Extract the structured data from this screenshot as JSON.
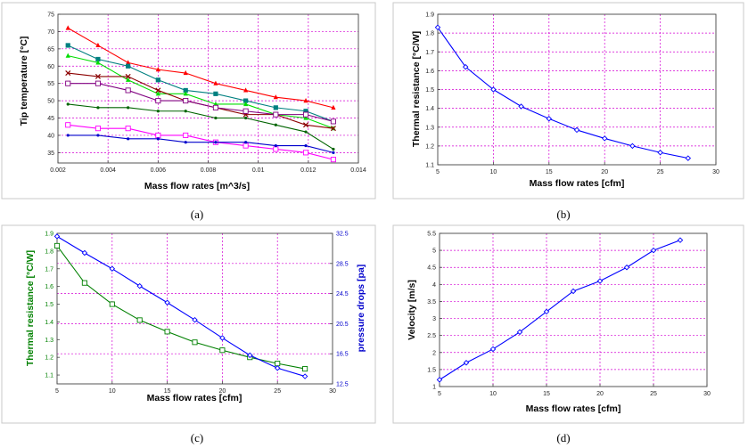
{
  "captions": {
    "a": "(a)",
    "b": "(b)",
    "c": "(c)",
    "d": "(d)"
  },
  "chart_data": [
    {
      "id": "a",
      "type": "line",
      "xlabel": "Mass flow rates [m^3/s]",
      "ylabel": "Tip temperature [°C]",
      "xlim": [
        0.002,
        0.014
      ],
      "ylim": [
        32,
        75
      ],
      "xticks": [
        0.002,
        0.004,
        0.006,
        0.008,
        0.01,
        0.012,
        0.014
      ],
      "xtick_labels": [
        "0.002",
        "0.004",
        "0.006",
        "0.008",
        "0.01",
        "0.012",
        "0.014"
      ],
      "yticks": [
        35,
        40,
        45,
        50,
        55,
        60,
        65,
        70,
        75
      ],
      "ytick_labels": [
        "35",
        "40",
        "45",
        "50",
        "55",
        "60",
        "65",
        "70",
        "75"
      ],
      "grid": true,
      "x": [
        0.0024,
        0.0036,
        0.0048,
        0.006,
        0.0071,
        0.0083,
        0.0095,
        0.0107,
        0.0119,
        0.013
      ],
      "series": [
        {
          "color": "#ff0000",
          "marker": "triangle",
          "values": [
            71,
            66,
            61,
            59,
            58,
            55,
            53,
            51,
            50,
            48
          ]
        },
        {
          "color": "#008080",
          "marker": "square",
          "values": [
            66,
            62,
            60,
            56,
            53,
            52,
            50,
            48,
            47,
            44
          ]
        },
        {
          "color": "#00dd00",
          "marker": "triangle",
          "values": [
            63,
            61,
            56,
            52,
            52,
            49,
            49,
            46,
            45,
            42
          ]
        },
        {
          "color": "#8b0000",
          "marker": "x",
          "values": [
            58,
            57,
            57,
            53,
            50,
            48,
            46,
            46,
            43,
            42
          ]
        },
        {
          "color": "#800080",
          "marker": "square-open",
          "values": [
            55,
            55,
            53,
            50,
            50,
            48,
            47,
            46,
            46,
            44
          ]
        },
        {
          "color": "#006400",
          "marker": "dot",
          "values": [
            49,
            48,
            48,
            47,
            47,
            45,
            45,
            43,
            41,
            36
          ]
        },
        {
          "color": "#ff00ff",
          "marker": "square-open",
          "values": [
            43,
            42,
            42,
            40,
            40,
            38,
            37,
            36,
            35,
            33
          ]
        },
        {
          "color": "#0000cc",
          "marker": "dot",
          "values": [
            40,
            40,
            39,
            39,
            38,
            38,
            38,
            37,
            37,
            35
          ]
        }
      ]
    },
    {
      "id": "b",
      "type": "line",
      "xlabel": "Mass flow rates [cfm]",
      "ylabel": "Thermal resistance [°C/W]",
      "xlim": [
        5,
        30
      ],
      "ylim": [
        1.1,
        1.9
      ],
      "xticks": [
        5,
        10,
        15,
        20,
        25,
        30
      ],
      "xtick_labels": [
        "5",
        "10",
        "15",
        "20",
        "25",
        "30"
      ],
      "yticks": [
        1.1,
        1.2,
        1.3,
        1.4,
        1.5,
        1.6,
        1.7,
        1.8,
        1.9
      ],
      "ytick_labels": [
        "1.1",
        "1.2",
        "1.3",
        "1.4",
        "1.5",
        "1.6",
        "1.7",
        "1.8",
        "1.9"
      ],
      "grid": true,
      "x": [
        5,
        7.5,
        10,
        12.5,
        15,
        17.5,
        20,
        22.5,
        25,
        27.5
      ],
      "series": [
        {
          "color": "#0000ff",
          "marker": "diamond",
          "values": [
            1.83,
            1.62,
            1.5,
            1.41,
            1.345,
            1.285,
            1.24,
            1.2,
            1.165,
            1.135
          ]
        }
      ]
    },
    {
      "id": "c",
      "type": "line",
      "xlabel": "Mass flow rates [cfm]",
      "ylabel": "Thermal resistance [°C/W]",
      "ylabel_right": "pressure drops [pa]",
      "xlim": [
        5,
        30
      ],
      "ylim": [
        1.05,
        1.9
      ],
      "ylim_right": [
        12.5,
        32.5
      ],
      "xticks": [
        5,
        10,
        15,
        20,
        25,
        30
      ],
      "xtick_labels": [
        "5",
        "10",
        "15",
        "20",
        "25",
        "30"
      ],
      "yticks": [
        1.1,
        1.2,
        1.3,
        1.4,
        1.5,
        1.6,
        1.7,
        1.8,
        1.9
      ],
      "ytick_labels": [
        "1.1",
        "1.2",
        "1.3",
        "1.4",
        "1.5",
        "1.6",
        "1.7",
        "1.8",
        "1.9"
      ],
      "yticks_right": [
        12.5,
        16.5,
        20.5,
        24.5,
        28.5,
        32.5
      ],
      "ytick_labels_right": [
        "12.5",
        "16.5",
        "20.5",
        "24.5",
        "28.5",
        "32.5"
      ],
      "grid": true,
      "x": [
        5,
        7.5,
        10,
        12.5,
        15,
        17.5,
        20,
        22.5,
        25,
        27.5
      ],
      "series": [
        {
          "color": "#008000",
          "marker": "square-open",
          "axis": "left",
          "values": [
            1.83,
            1.62,
            1.5,
            1.41,
            1.345,
            1.285,
            1.24,
            1.2,
            1.165,
            1.135
          ]
        },
        {
          "color": "#0000ff",
          "marker": "diamond",
          "axis": "right",
          "values": [
            32.1,
            29.9,
            27.8,
            25.5,
            23.3,
            21.0,
            18.6,
            16.3,
            14.6,
            13.5
          ]
        }
      ]
    },
    {
      "id": "d",
      "type": "line",
      "xlabel": "Mass flow rates [cfm]",
      "ylabel": "Velocity [m/s]",
      "xlim": [
        5,
        30
      ],
      "ylim": [
        1,
        5.5
      ],
      "xticks": [
        5,
        10,
        15,
        20,
        25,
        30
      ],
      "xtick_labels": [
        "5",
        "10",
        "15",
        "20",
        "25",
        "30"
      ],
      "yticks": [
        1,
        1.5,
        2,
        2.5,
        3,
        3.5,
        4,
        4.5,
        5,
        5.5
      ],
      "ytick_labels": [
        "1",
        "1.5",
        "2",
        "2.5",
        "3",
        "3.5",
        "4",
        "4.5",
        "5",
        "5.5"
      ],
      "grid": true,
      "x": [
        5,
        7.5,
        10,
        12.5,
        15,
        17.5,
        20,
        22.5,
        25,
        27.5
      ],
      "series": [
        {
          "color": "#0000ff",
          "marker": "diamond",
          "values": [
            1.2,
            1.7,
            2.1,
            2.6,
            3.2,
            3.8,
            4.1,
            4.5,
            5.0,
            5.3
          ]
        }
      ]
    }
  ]
}
